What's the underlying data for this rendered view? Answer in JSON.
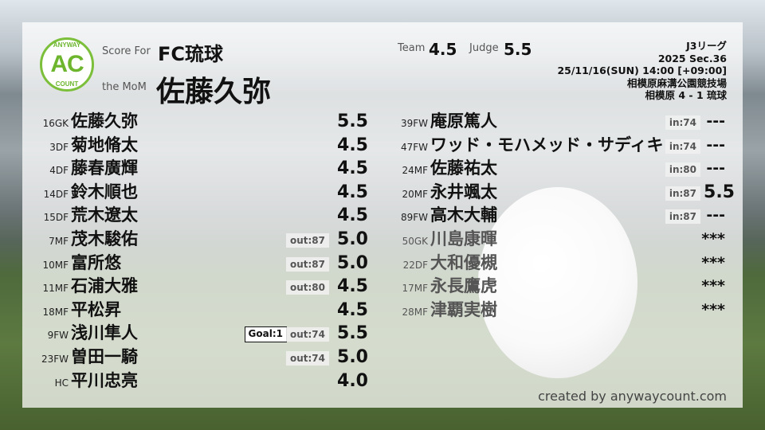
{
  "header": {
    "score_for_label": "Score For",
    "club": "FC琉球",
    "mom_label": "the MoM",
    "mom_name": "佐藤久弥",
    "team_label": "Team",
    "team_score": "4.5",
    "judge_label": "Judge",
    "judge_score": "5.5"
  },
  "logo": {
    "top": "ANYWAY",
    "middle": "AC",
    "bottom": "COUNT",
    "color": "#6cb52d"
  },
  "match": {
    "league": "J3リーグ",
    "section": "2025 Sec.36",
    "datetime": "25/11/16(SUN) 14:00 [+09:00]",
    "venue": "相模原麻溝公園競技場",
    "result": "相模原 4 - 1 琉球"
  },
  "starters": [
    {
      "pos": "16GK",
      "name": "佐藤久弥",
      "score": "5.5"
    },
    {
      "pos": "3DF",
      "name": "菊地脩太",
      "score": "4.5"
    },
    {
      "pos": "4DF",
      "name": "藤春廣輝",
      "score": "4.5"
    },
    {
      "pos": "14DF",
      "name": "鈴木順也",
      "score": "4.5"
    },
    {
      "pos": "15DF",
      "name": "荒木遼太",
      "score": "4.5"
    },
    {
      "pos": "7MF",
      "name": "茂木駿佑",
      "sub": "out:87",
      "score": "5.0"
    },
    {
      "pos": "10MF",
      "name": "富所悠",
      "sub": "out:87",
      "score": "5.0"
    },
    {
      "pos": "11MF",
      "name": "石浦大雅",
      "sub": "out:80",
      "score": "4.5"
    },
    {
      "pos": "18MF",
      "name": "平松昇",
      "score": "4.5"
    },
    {
      "pos": "9FW",
      "name": "浅川隼人",
      "goal": "Goal:1",
      "sub": "out:74",
      "score": "5.5"
    },
    {
      "pos": "23FW",
      "name": "曽田一騎",
      "sub": "out:74",
      "score": "5.0"
    },
    {
      "pos": "HC",
      "name": "平川忠亮",
      "score": "4.0"
    }
  ],
  "subs": [
    {
      "pos": "39FW",
      "name": "庵原篤人",
      "sub": "in:74",
      "score": "---"
    },
    {
      "pos": "47FW",
      "name": "ワッド・モハメッド・サディキ",
      "sub": "in:74",
      "score": "---"
    },
    {
      "pos": "24MF",
      "name": "佐藤祐太",
      "sub": "in:80",
      "score": "---"
    },
    {
      "pos": "20MF",
      "name": "永井颯太",
      "sub": "in:87",
      "score": "5.5"
    },
    {
      "pos": "89FW",
      "name": "高木大輔",
      "sub": "in:87",
      "score": "---"
    },
    {
      "pos": "50GK",
      "name": "川島康暉",
      "score": "***",
      "unused": true
    },
    {
      "pos": "22DF",
      "name": "大和優槻",
      "score": "***",
      "unused": true
    },
    {
      "pos": "17MF",
      "name": "永長鷹虎",
      "score": "***",
      "unused": true
    },
    {
      "pos": "28MF",
      "name": "津覇実樹",
      "score": "***",
      "unused": true
    }
  ],
  "footer": {
    "credit": "created by anywaycount.com"
  }
}
